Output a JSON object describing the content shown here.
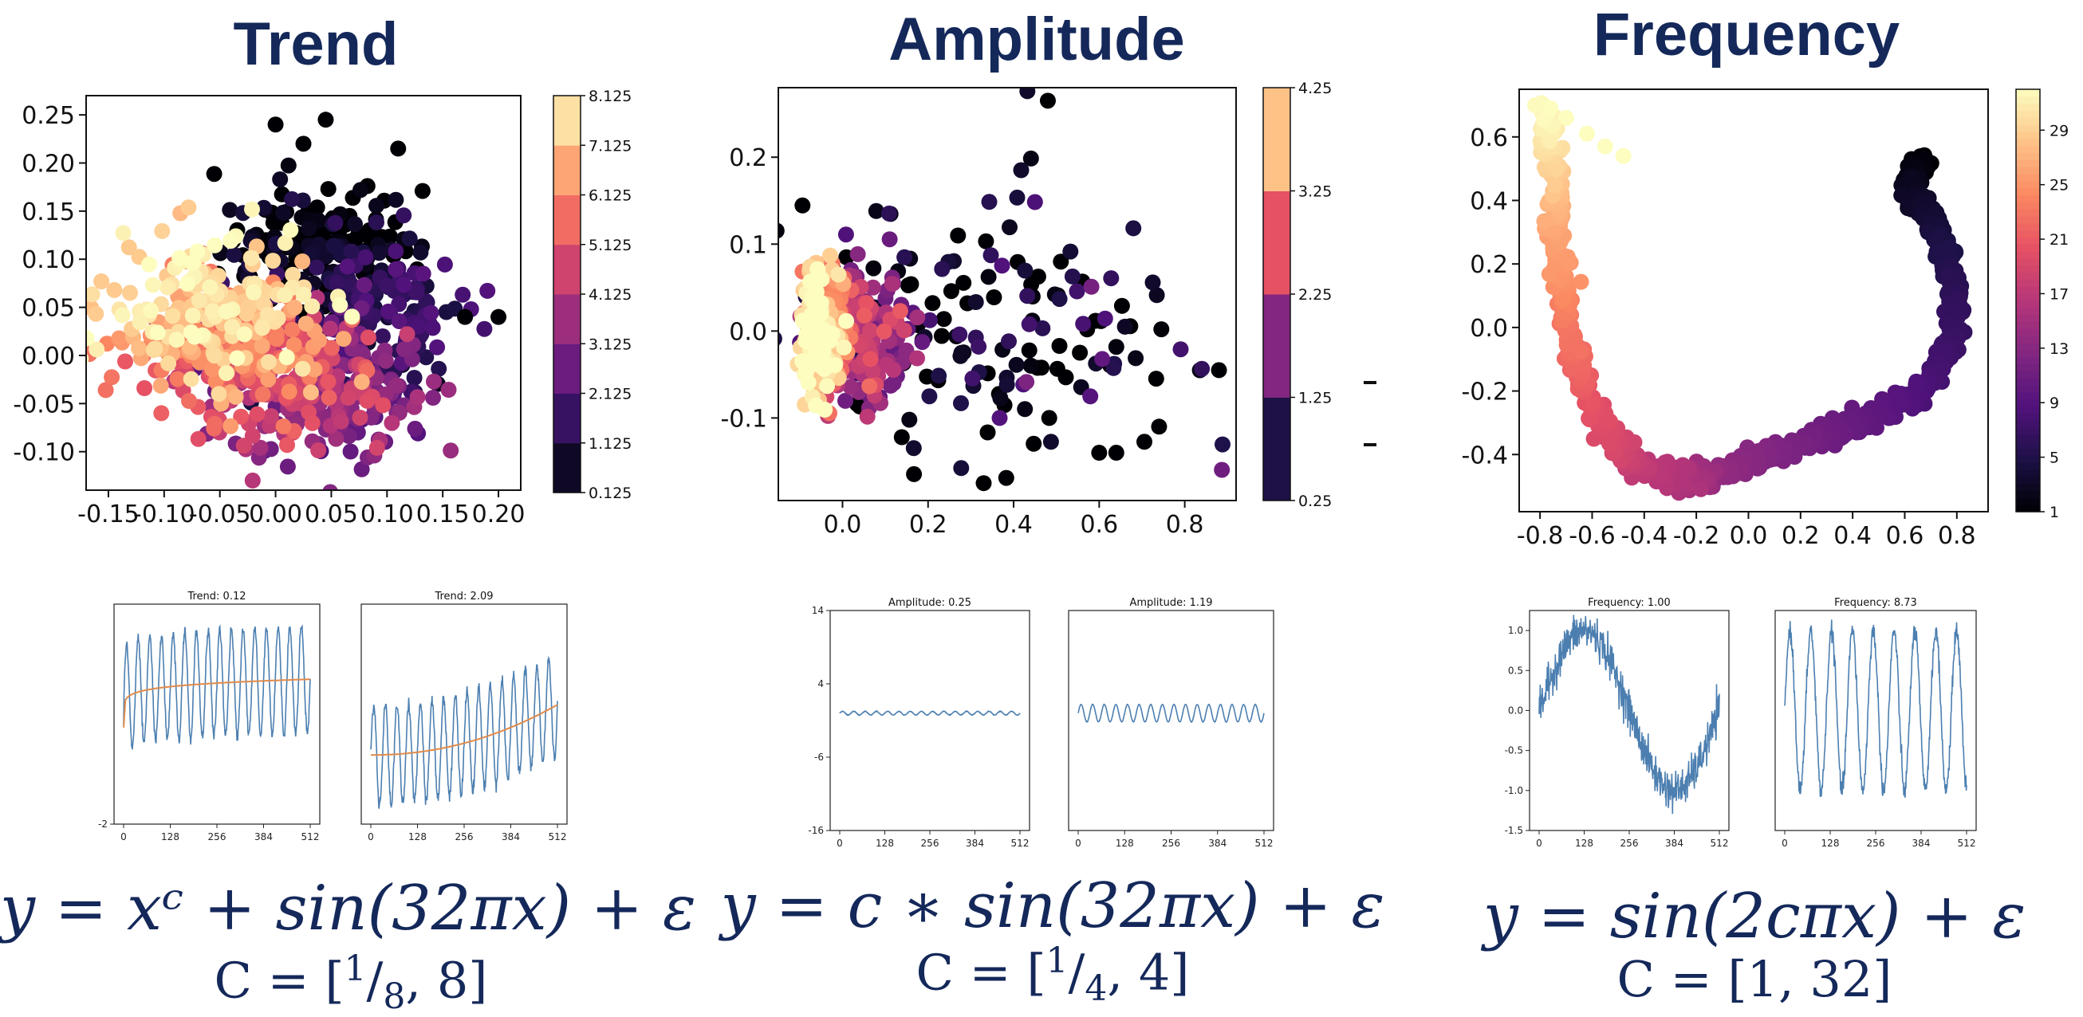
{
  "panels": [
    {
      "title": "Trend",
      "formula": "y = xᶜ + sin(32πx) + ε",
      "c_range": {
        "prefix": "C = [",
        "num": "1",
        "den": "8",
        "suffix": ", 8]"
      }
    },
    {
      "title": "Amplitude",
      "formula": "y = c ∗ sin(32πx) + ε",
      "c_range": {
        "prefix": "C = [",
        "num": "1",
        "den": "4",
        "suffix": ", 4]"
      }
    },
    {
      "title": "Frequency",
      "formula": "y = sin(2cπx) + ε",
      "c_range": {
        "prefix": "C = [",
        "num": "",
        "den": "",
        "suffix": "1, 32]"
      }
    }
  ],
  "chart_data": [
    {
      "id": "trend-embedding",
      "type": "scatter",
      "title": "",
      "xlim": [
        -0.17,
        0.22
      ],
      "ylim": [
        -0.14,
        0.27
      ],
      "xticks": [
        "-0.15",
        "-0.10",
        "-0.05",
        "0.00",
        "0.05",
        "0.10",
        "0.15",
        "0.20"
      ],
      "xtick_values": [
        -0.15,
        -0.1,
        -0.05,
        0.0,
        0.05,
        0.1,
        0.15,
        0.2
      ],
      "yticks": [
        "0.25",
        "0.20",
        "0.15",
        "0.10",
        "0.05",
        "0.00",
        "-0.05",
        "-0.10"
      ],
      "ytick_values": [
        0.25,
        0.2,
        0.15,
        0.1,
        0.05,
        0.0,
        -0.05,
        -0.1
      ],
      "colorbar": {
        "type": "discrete",
        "min": 0.125,
        "max": 8.125,
        "ticks": [
          "8.125",
          "7.125",
          "6.125",
          "5.125",
          "4.125",
          "3.125",
          "2.125",
          "1.125",
          "0.125"
        ]
      },
      "cluster_centers": [
        {
          "x": 0.04,
          "y": 0.11,
          "c": 0.2
        },
        {
          "x": 0.08,
          "y": 0.04,
          "c": 1.5
        },
        {
          "x": 0.05,
          "y": -0.04,
          "c": 3.0
        },
        {
          "x": 0.0,
          "y": -0.02,
          "c": 4.5
        },
        {
          "x": -0.04,
          "y": 0.01,
          "c": 6.0
        },
        {
          "x": -0.06,
          "y": 0.05,
          "c": 7.5
        }
      ],
      "distinct_points": [
        {
          "x": 0.045,
          "y": 0.245
        },
        {
          "x": 0.0,
          "y": 0.24
        },
        {
          "x": 0.025,
          "y": 0.22
        },
        {
          "x": 0.11,
          "y": 0.215
        },
        {
          "x": 0.17,
          "y": 0.04
        },
        {
          "x": 0.2,
          "y": 0.04
        }
      ]
    },
    {
      "id": "amplitude-embedding",
      "type": "scatter",
      "xlim": [
        -0.15,
        0.92
      ],
      "ylim": [
        -0.195,
        0.28
      ],
      "xticks": [
        "0.0",
        "0.2",
        "0.4",
        "0.6",
        "0.8"
      ],
      "xtick_values": [
        0.0,
        0.2,
        0.4,
        0.6,
        0.8
      ],
      "yticks": [
        "0.2",
        "0.1",
        "0.0",
        "-0.1"
      ],
      "ytick_values": [
        0.2,
        0.1,
        0.0,
        -0.1
      ],
      "colorbar": {
        "type": "discrete",
        "min": 0.25,
        "max": 4.25,
        "ticks": [
          "4.25",
          "3.25",
          "2.25",
          "1.25",
          "0.25"
        ]
      },
      "cluster_centers": [
        {
          "x": -0.06,
          "y": 0.0,
          "c": 4.0
        },
        {
          "x": -0.02,
          "y": 0.0,
          "c": 3.0
        },
        {
          "x": 0.05,
          "y": -0.01,
          "c": 2.0
        },
        {
          "x": 0.35,
          "y": 0.0,
          "c": 0.5
        }
      ],
      "distinct_points": [
        {
          "x": 0.48,
          "y": 0.265
        },
        {
          "x": 0.88,
          "y": -0.045
        },
        {
          "x": 0.74,
          "y": -0.11
        },
        {
          "x": 0.33,
          "y": -0.175
        },
        {
          "x": 0.6,
          "y": -0.14
        },
        {
          "x": 0.64,
          "y": -0.14
        }
      ]
    },
    {
      "id": "frequency-embedding",
      "type": "scatter",
      "xlim": [
        -0.88,
        0.92
      ],
      "ylim": [
        -0.58,
        0.75
      ],
      "xticks": [
        "-0.8",
        "-0.6",
        "-0.4",
        "-0.2",
        "0.0",
        "0.2",
        "0.4",
        "0.6",
        "0.8"
      ],
      "xtick_values": [
        -0.8,
        -0.6,
        -0.4,
        -0.2,
        0.0,
        0.2,
        0.4,
        0.6,
        0.8
      ],
      "yticks": [
        "0.6",
        "0.4",
        "0.2",
        "0.0",
        "-0.2",
        "-0.4"
      ],
      "ytick_values": [
        0.6,
        0.4,
        0.2,
        0.0,
        -0.2,
        -0.4
      ],
      "colorbar": {
        "type": "continuous",
        "min": 1,
        "max": 32,
        "ticks": [
          "29",
          "25",
          "21",
          "17",
          "13",
          "9",
          "5",
          "1"
        ],
        "tick_values": [
          29,
          25,
          21,
          17,
          13,
          9,
          5,
          1
        ]
      },
      "curve": {
        "x": [
          0.68,
          0.62,
          0.64,
          0.72,
          0.76,
          0.8,
          0.78,
          0.7,
          0.6,
          0.45,
          0.3,
          0.15,
          0.0,
          -0.15,
          -0.25,
          -0.4,
          -0.5,
          -0.6,
          -0.66,
          -0.7,
          -0.72,
          -0.73,
          -0.74,
          -0.76,
          -0.78
        ],
        "y": [
          0.52,
          0.47,
          0.4,
          0.32,
          0.22,
          0.1,
          -0.05,
          -0.17,
          -0.24,
          -0.3,
          -0.34,
          -0.38,
          -0.42,
          -0.46,
          -0.48,
          -0.45,
          -0.37,
          -0.26,
          -0.12,
          0.02,
          0.16,
          0.3,
          0.44,
          0.57,
          0.69
        ],
        "c": [
          1,
          2,
          3,
          4,
          5,
          6,
          7,
          8,
          9,
          10,
          11,
          12,
          13,
          14,
          16,
          17,
          19,
          20,
          22,
          23,
          25,
          26,
          28,
          30,
          32
        ]
      },
      "tail": {
        "x": [
          -0.76,
          -0.7,
          -0.62,
          -0.55,
          -0.48
        ],
        "y": [
          0.69,
          0.66,
          0.61,
          0.57,
          0.54
        ],
        "c": 32
      }
    }
  ],
  "samples": [
    {
      "id": "trend-sample-low",
      "title": "Trend: 0.12",
      "xticks": [
        "0",
        "128",
        "256",
        "384",
        "512"
      ],
      "yticks": [
        "-2"
      ],
      "ylim": [
        -2,
        2.1
      ],
      "signal": "sin",
      "cycles": 16,
      "amplitude": 1.0,
      "offset": 0.3,
      "noise": 0.05,
      "trend": {
        "shown": true,
        "exponent": 0.12,
        "scale": 0.9
      }
    },
    {
      "id": "trend-sample-high",
      "title": "Trend: 2.09",
      "xticks": [
        "0",
        "128",
        "256",
        "384",
        "512"
      ],
      "yticks": [],
      "ylim": [
        -1.5,
        2.0
      ],
      "signal": "sin",
      "cycles": 16,
      "amplitude": 0.8,
      "offset": 0.1,
      "noise": 0.05,
      "trend": {
        "shown": true,
        "exponent": 2.09,
        "scale": 0.8
      }
    },
    {
      "id": "amplitude-sample-low",
      "title": "Amplitude: 0.25",
      "xticks": [
        "0",
        "128",
        "256",
        "384",
        "512"
      ],
      "yticks": [
        "14",
        "4",
        "-6",
        "-16"
      ],
      "ylim": [
        -16,
        14
      ],
      "signal": "sin",
      "cycles": 16,
      "amplitude": 0.25,
      "offset": 0,
      "noise": 0.02,
      "trend": {
        "shown": false
      }
    },
    {
      "id": "amplitude-sample-high",
      "title": "Amplitude: 1.19",
      "xticks": [
        "0",
        "128",
        "256",
        "384",
        "512"
      ],
      "yticks": [],
      "ylim": [
        -16,
        14
      ],
      "signal": "sin",
      "cycles": 16,
      "amplitude": 1.19,
      "offset": 0,
      "noise": 0.02,
      "trend": {
        "shown": false
      }
    },
    {
      "id": "frequency-sample-low",
      "title": "Frequency: 1.00",
      "xticks": [
        "0",
        "128",
        "256",
        "384",
        "512"
      ],
      "yticks": [
        "1.0",
        "0.5",
        "0.0",
        "-0.5",
        "-1.0",
        "-1.5"
      ],
      "ylim": [
        -1.5,
        1.25
      ],
      "signal": "sin",
      "cycles": 1,
      "amplitude": 1.0,
      "offset": 0,
      "noise": 0.12,
      "trend": {
        "shown": false
      }
    },
    {
      "id": "frequency-sample-high",
      "title": "Frequency: 8.73",
      "xticks": [
        "0",
        "128",
        "256",
        "384",
        "512"
      ],
      "yticks": [],
      "ylim": [
        -1.5,
        1.25
      ],
      "signal": "sin",
      "cycles": 8.73,
      "amplitude": 1.0,
      "offset": 0,
      "noise": 0.06,
      "trend": {
        "shown": false
      }
    }
  ],
  "colors": {
    "title_text": "#14285a",
    "series_line": "#4c7fb0",
    "trend_line": "#e08a4a",
    "magma": [
      "#000004",
      "#1d1147",
      "#51127c",
      "#822681",
      "#b63679",
      "#e65164",
      "#fb8861",
      "#fec287",
      "#fcfdbf"
    ]
  }
}
